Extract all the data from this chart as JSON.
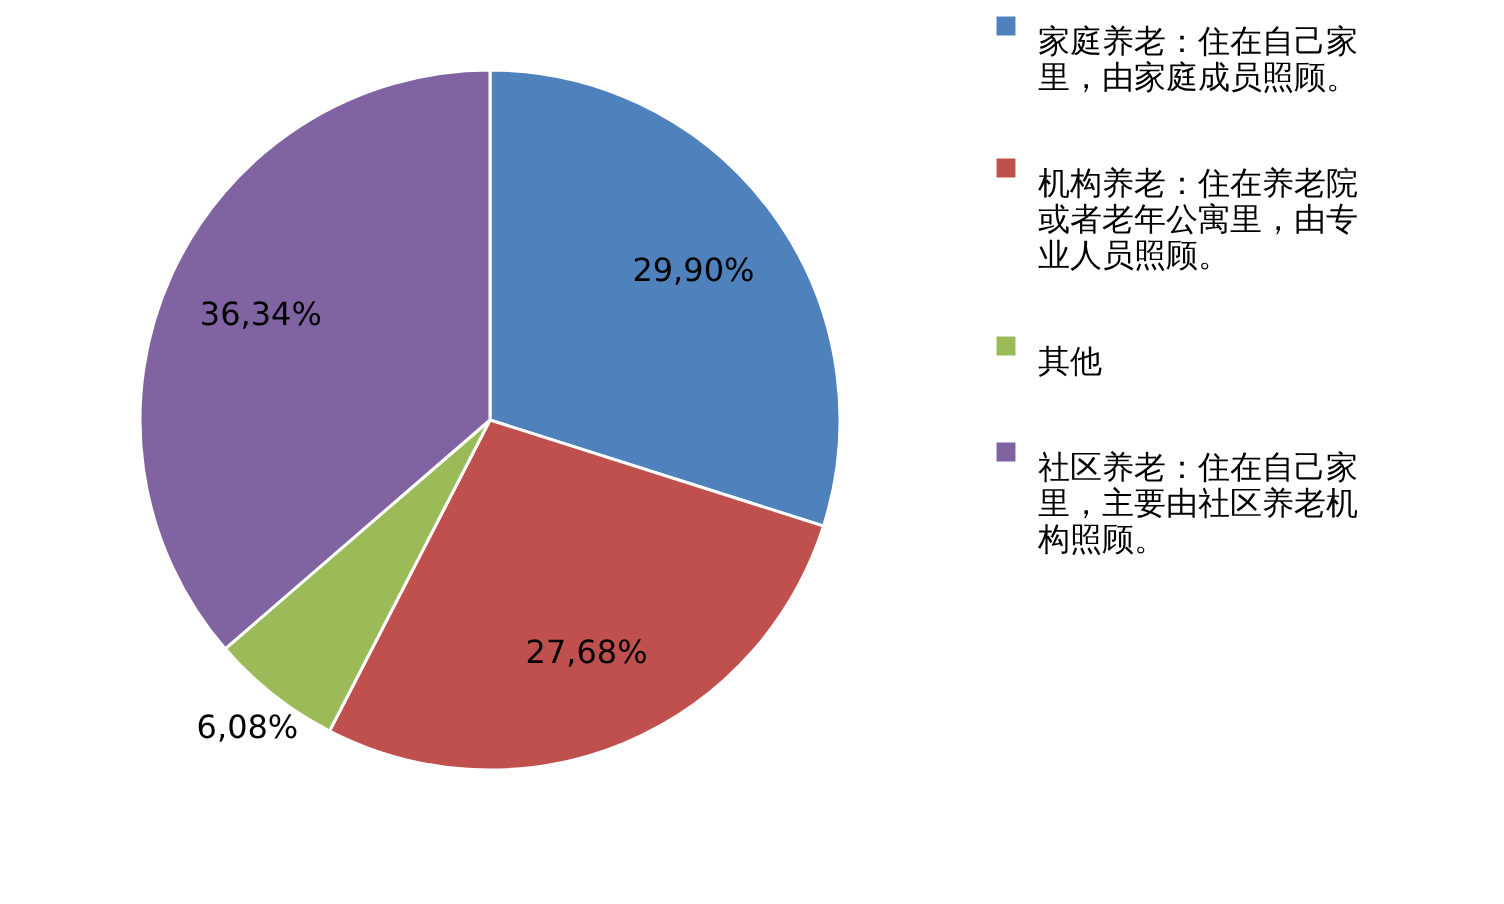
{
  "chart_data": {
    "type": "pie",
    "categories": [
      "家庭养老：住在自己家里，由家庭成员照顾。",
      "机构养老：住在养老院或者老年公寓里，由专业人员照顾。",
      "其他",
      "社区养老：住在自己家里，主要由社区养老机构照顾。"
    ],
    "values": [
      29.9,
      27.68,
      6.08,
      36.34
    ],
    "value_labels": [
      "29,90%",
      "27,68%",
      "6,08%",
      "36,34%"
    ],
    "colors": [
      "#4f81bd",
      "#c0504d",
      "#9bbb59",
      "#8064a2"
    ],
    "legend": "right"
  }
}
